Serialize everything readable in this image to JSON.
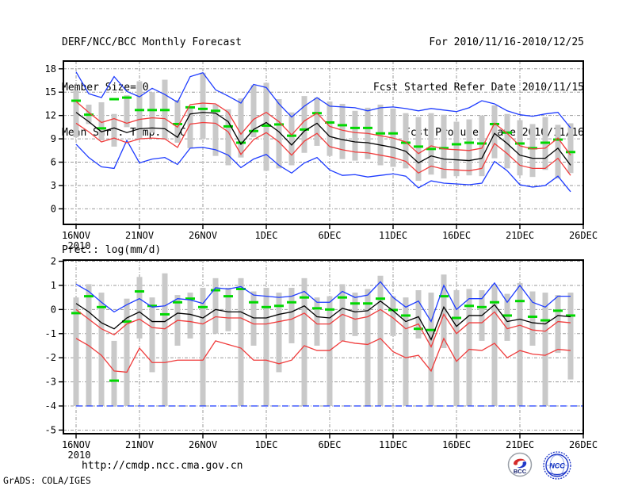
{
  "header": {
    "title": "DERF/NCC/BCC Monthly Forecast",
    "member_size": "Member Size=40",
    "valid_range": "For 2010/11/16-2010/12/25",
    "refer_date": "Fcst Started Refer Date 2010/11/15",
    "produced_date": "Fcst Produced Date 2010/11/16"
  },
  "footer": {
    "url": "http://cmdp.ncc.cma.gov.cn",
    "credit": "GrADS: COLA/IGES"
  },
  "logos": {
    "bcc_label": "BCC",
    "ncc_label": "NCC"
  },
  "colors": {
    "ensemble_mean": "#000000",
    "std_band": "#f03c3c",
    "extreme_band": "#1e3cff",
    "observation_dash": "#00d800",
    "member_bar": "#c9c9c9"
  },
  "chart_data": [
    {
      "type": "band-line",
      "title": "Mean Surf. Temp.: °C",
      "x_tick_labels": [
        "16NOV",
        "21NOV",
        "26NOV",
        "1DEC",
        "6DEC",
        "11DEC",
        "16DEC",
        "21DEC",
        "26DEC"
      ],
      "x_year_label": "2010",
      "y_ticks": [
        0,
        3,
        6,
        9,
        12,
        15,
        18
      ],
      "ylim": [
        -2,
        19
      ],
      "n_days": 40,
      "series": {
        "member_range_bars": [
          [
            9.2,
            15.2
          ],
          [
            10.9,
            13.4
          ],
          [
            8.8,
            13.7
          ],
          [
            8.0,
            12.2
          ],
          [
            10.5,
            14.6
          ],
          [
            9.0,
            16.4
          ],
          [
            9.8,
            15.0
          ],
          [
            8.9,
            16.6
          ],
          [
            8.5,
            14.0
          ],
          [
            7.8,
            13.2
          ],
          [
            9.0,
            17.5
          ],
          [
            6.8,
            13.4
          ],
          [
            5.6,
            12.8
          ],
          [
            6.6,
            14.2
          ],
          [
            9.2,
            15.9
          ],
          [
            4.9,
            16.2
          ],
          [
            5.2,
            14.1
          ],
          [
            5.6,
            12.4
          ],
          [
            7.2,
            14.5
          ],
          [
            8.1,
            14.3
          ],
          [
            6.8,
            13.8
          ],
          [
            6.4,
            13.5
          ],
          [
            6.2,
            12.6
          ],
          [
            6.4,
            13.0
          ],
          [
            5.6,
            13.4
          ],
          [
            5.4,
            12.9
          ],
          [
            5.2,
            12.3
          ],
          [
            3.6,
            11.8
          ],
          [
            4.4,
            12.3
          ],
          [
            3.9,
            12.1
          ],
          [
            4.2,
            11.2
          ],
          [
            4.3,
            11.5
          ],
          [
            4.2,
            12.0
          ],
          [
            6.5,
            13.3
          ],
          [
            5.2,
            12.2
          ],
          [
            4.3,
            11.4
          ],
          [
            4.1,
            10.9
          ],
          [
            5.0,
            11.8
          ],
          [
            3.9,
            10.8
          ],
          [
            4.6,
            11.0
          ]
        ],
        "observation_green": [
          13.9,
          12.1,
          10.35,
          14.1,
          14.3,
          12.7,
          12.7,
          12.7,
          10.9,
          13.05,
          12.85,
          12.6,
          10.6,
          8.5,
          10.0,
          10.7,
          10.85,
          9.4,
          10.2,
          12.3,
          11.1,
          10.75,
          10.4,
          10.4,
          9.7,
          9.7,
          8.5,
          8.0,
          7.7,
          7.8,
          8.3,
          8.5,
          8.4,
          10.9,
          9.8,
          8.4,
          7.8,
          8.5,
          8.9,
          7.3
        ],
        "ensemble_mean_black": [
          12.4,
          11.2,
          9.9,
          10.4,
          9.8,
          10.3,
          10.4,
          10.3,
          9.2,
          12.2,
          12.4,
          12.3,
          11.2,
          8.3,
          10.2,
          11.1,
          9.9,
          8.2,
          10.0,
          11.0,
          9.3,
          8.9,
          8.6,
          8.5,
          8.2,
          7.9,
          7.4,
          5.9,
          6.8,
          6.4,
          6.3,
          6.2,
          6.5,
          9.7,
          8.4,
          6.9,
          6.5,
          6.5,
          7.8,
          5.6
        ],
        "std_upper_red": [
          13.8,
          12.4,
          11.1,
          11.6,
          11.0,
          11.5,
          11.7,
          11.6,
          10.5,
          13.4,
          13.6,
          13.5,
          12.4,
          9.6,
          11.5,
          12.4,
          11.2,
          9.5,
          11.3,
          12.3,
          10.6,
          10.1,
          9.8,
          9.7,
          9.4,
          9.1,
          8.6,
          7.1,
          8.1,
          7.7,
          7.6,
          7.5,
          7.8,
          11.0,
          9.7,
          8.1,
          7.7,
          7.8,
          9.1,
          6.9
        ],
        "std_lower_red": [
          11.0,
          9.9,
          8.6,
          9.1,
          8.5,
          9.0,
          9.1,
          9.0,
          7.9,
          10.9,
          11.1,
          11.0,
          9.9,
          7.0,
          8.9,
          9.8,
          8.6,
          6.9,
          8.7,
          9.7,
          8.0,
          7.6,
          7.3,
          7.2,
          6.9,
          6.6,
          6.1,
          4.6,
          5.5,
          5.1,
          5.0,
          4.9,
          5.2,
          8.4,
          7.1,
          5.6,
          5.2,
          5.2,
          6.5,
          4.3
        ],
        "max_blue": [
          17.6,
          14.8,
          14.3,
          17.0,
          15.1,
          14.4,
          15.5,
          14.7,
          13.7,
          17.0,
          17.5,
          15.3,
          14.5,
          13.6,
          16.0,
          15.6,
          13.5,
          11.8,
          13.2,
          14.3,
          13.2,
          13.1,
          13.0,
          12.6,
          13.0,
          13.1,
          12.9,
          12.6,
          12.9,
          12.7,
          12.5,
          13.0,
          13.9,
          13.5,
          12.6,
          12.1,
          11.9,
          12.2,
          12.4,
          10.4
        ],
        "min_blue": [
          8.3,
          6.6,
          5.4,
          5.2,
          8.8,
          5.9,
          6.4,
          6.6,
          5.7,
          7.8,
          7.9,
          7.6,
          6.9,
          5.3,
          6.4,
          7.0,
          5.6,
          4.6,
          5.9,
          6.6,
          5.0,
          4.3,
          4.4,
          4.1,
          4.3,
          4.5,
          4.2,
          2.7,
          3.6,
          3.3,
          3.2,
          3.1,
          3.3,
          6.1,
          4.9,
          3.1,
          2.8,
          3.0,
          4.2,
          2.2
        ]
      }
    },
    {
      "type": "band-line",
      "title": "Prec.: log(mm/d)",
      "x_tick_labels": [
        "16NOV",
        "21NOV",
        "26NOV",
        "1DEC",
        "6DEC",
        "11DEC",
        "16DEC",
        "21DEC",
        "26DEC"
      ],
      "x_year_label": "2010",
      "y_ticks": [
        2,
        1,
        0,
        -1,
        -2,
        -3,
        -4,
        -5
      ],
      "ylim": [
        -5.15,
        2.05
      ],
      "n_days": 40,
      "min_blue_flat": -4,
      "series": {
        "member_range_bars": [
          [
            -4,
            0.5
          ],
          [
            -4,
            1.05
          ],
          [
            -4,
            0.7
          ],
          [
            -4,
            -1.3
          ],
          [
            -4,
            0.45
          ],
          [
            -1.2,
            1.35
          ],
          [
            -2.6,
            0.5
          ],
          [
            -4,
            1.5
          ],
          [
            -1.5,
            0.6
          ],
          [
            -1.2,
            0.7
          ],
          [
            -4,
            0.9
          ],
          [
            -1.0,
            1.3
          ],
          [
            -0.9,
            0.9
          ],
          [
            -4,
            1.3
          ],
          [
            -1.5,
            0.75
          ],
          [
            -4,
            0.9
          ],
          [
            -2.6,
            0.7
          ],
          [
            -1.4,
            0.9
          ],
          [
            -4,
            1.3
          ],
          [
            -1.5,
            0.5
          ],
          [
            -4,
            0.55
          ],
          [
            -1.3,
            1.05
          ],
          [
            -1.1,
            0.7
          ],
          [
            -4,
            0.85
          ],
          [
            -4,
            1.4
          ],
          [
            -1.1,
            0.55
          ],
          [
            -4,
            0.5
          ],
          [
            -1.2,
            0.8
          ],
          [
            -4,
            0.7
          ],
          [
            -1.6,
            1.45
          ],
          [
            -4,
            0.8
          ],
          [
            -4,
            0.85
          ],
          [
            -1.3,
            0.8
          ],
          [
            -4,
            1.05
          ],
          [
            -1.3,
            0.65
          ],
          [
            -4,
            1.1
          ],
          [
            -1.5,
            0.75
          ],
          [
            -4,
            0.7
          ],
          [
            -1.8,
            0.6
          ],
          [
            -2.9,
            0.7
          ]
        ],
        "observation_green": [
          -0.15,
          0.55,
          0.1,
          -2.95,
          -0.5,
          0.75,
          0.15,
          -0.2,
          0.3,
          0.45,
          0.1,
          0.8,
          0.55,
          0.85,
          0.3,
          0.1,
          0.15,
          0.3,
          0.5,
          0.05,
          0.0,
          0.5,
          0.25,
          0.25,
          0.45,
          -0.02,
          -0.25,
          -0.8,
          -0.85,
          0.55,
          -0.35,
          0.15,
          0.1,
          0.3,
          -0.25,
          0.35,
          -0.3,
          -0.45,
          -0.05,
          -0.25
        ],
        "ensemble_mean_black": [
          0.25,
          -0.1,
          -0.55,
          -0.8,
          -0.35,
          -0.1,
          -0.5,
          -0.5,
          -0.15,
          -0.2,
          -0.35,
          0.0,
          -0.1,
          -0.1,
          -0.35,
          -0.35,
          -0.2,
          -0.1,
          0.15,
          -0.3,
          -0.35,
          0.05,
          -0.1,
          -0.05,
          0.35,
          -0.05,
          -0.5,
          -0.3,
          -1.25,
          0.1,
          -0.7,
          -0.25,
          -0.25,
          0.2,
          -0.5,
          -0.4,
          -0.55,
          -0.6,
          -0.25,
          -0.3
        ],
        "std_upper_red": [
          0.0,
          -0.4,
          -0.8,
          -1.05,
          -0.6,
          -0.4,
          -0.75,
          -0.8,
          -0.45,
          -0.5,
          -0.6,
          -0.3,
          -0.35,
          -0.35,
          -0.6,
          -0.6,
          -0.5,
          -0.4,
          -0.15,
          -0.6,
          -0.6,
          -0.2,
          -0.4,
          -0.3,
          0.0,
          -0.35,
          -0.8,
          -0.6,
          -1.55,
          -0.2,
          -1.0,
          -0.55,
          -0.55,
          -0.1,
          -0.8,
          -0.65,
          -0.85,
          -0.9,
          -0.5,
          -0.55
        ],
        "std_lower_red": [
          -1.2,
          -1.5,
          -1.9,
          -2.55,
          -2.6,
          -1.6,
          -2.2,
          -2.2,
          -2.1,
          -2.1,
          -2.1,
          -1.3,
          -1.45,
          -1.6,
          -2.1,
          -2.1,
          -2.25,
          -2.1,
          -1.5,
          -1.7,
          -1.7,
          -1.3,
          -1.4,
          -1.45,
          -1.2,
          -1.75,
          -2.0,
          -1.9,
          -2.55,
          -1.2,
          -2.15,
          -1.65,
          -1.7,
          -1.4,
          -2.0,
          -1.7,
          -1.85,
          -1.9,
          -1.65,
          -1.7
        ],
        "max_blue": [
          1.05,
          0.75,
          0.3,
          -0.1,
          0.2,
          0.45,
          0.1,
          0.15,
          0.45,
          0.4,
          0.25,
          0.9,
          0.85,
          0.95,
          0.6,
          0.55,
          0.5,
          0.55,
          0.75,
          0.3,
          0.3,
          0.75,
          0.5,
          0.6,
          1.15,
          0.5,
          0.1,
          0.35,
          -0.5,
          1.0,
          0.0,
          0.45,
          0.45,
          1.1,
          0.3,
          1.0,
          0.3,
          0.1,
          0.55,
          0.55
        ]
      }
    }
  ]
}
